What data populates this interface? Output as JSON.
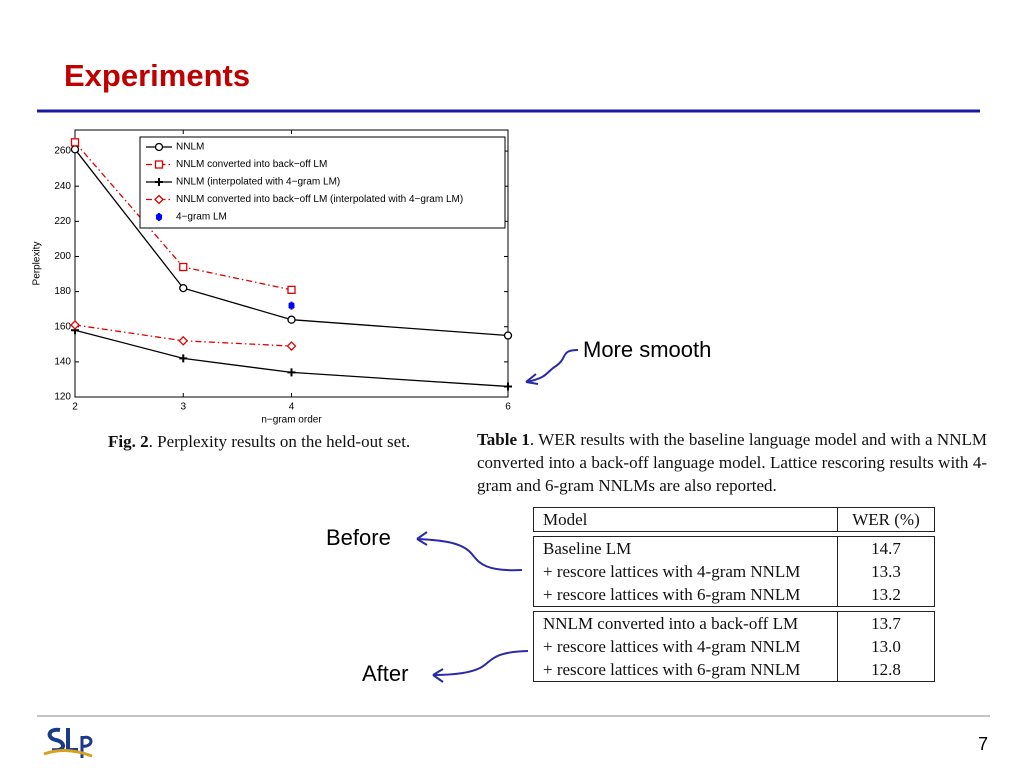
{
  "title": "Experiments",
  "chart_data": {
    "type": "line",
    "xlabel": "n−gram order",
    "ylabel": "Perplexity",
    "x": [
      2,
      3,
      4,
      6
    ],
    "xlim": [
      2,
      6
    ],
    "xticks": [
      2,
      3,
      4,
      6
    ],
    "ylim": [
      120,
      272
    ],
    "yticks": [
      120,
      140,
      160,
      180,
      200,
      220,
      240,
      260
    ],
    "grid": false,
    "series": [
      {
        "name": "NNLM",
        "color": "#000000",
        "marker": "circle",
        "dash": "solid",
        "values": [
          261,
          182,
          164,
          155
        ]
      },
      {
        "name": "NNLM converted into back−off LM",
        "color": "#e00000",
        "marker": "square",
        "dash": "dashdot",
        "values": [
          265,
          194,
          181,
          null
        ]
      },
      {
        "name": "NNLM (interpolated with 4−gram LM)",
        "color": "#000000",
        "marker": "plus",
        "dash": "solid",
        "values": [
          158,
          142,
          134,
          126
        ]
      },
      {
        "name": "NNLM converted into back−off LM (interpolated with 4−gram LM)",
        "color": "#e00000",
        "marker": "diamond",
        "dash": "dashdot",
        "values": [
          161,
          152,
          149,
          null
        ]
      },
      {
        "name": "4−gram LM",
        "color": "#0000ff",
        "marker": "star",
        "dash": "none",
        "values": [
          null,
          null,
          172,
          null
        ]
      }
    ]
  },
  "figure_caption": {
    "label": "Fig. 2",
    "text": ". Perplexity results on the held-out set."
  },
  "table_caption": {
    "label": "Table 1",
    "text": ". WER results with the baseline language model and with a NNLM converted into a back-off language model. Lattice rescoring results with 4-gram and 6-gram NNLMs are also reported."
  },
  "table": {
    "header": [
      "Model",
      "WER (%)"
    ],
    "groups": [
      [
        [
          "Baseline LM",
          "14.7"
        ],
        [
          "+ rescore lattices with 4-gram NNLM",
          "13.3"
        ],
        [
          "+ rescore lattices with 6-gram NNLM",
          "13.2"
        ]
      ],
      [
        [
          "NNLM converted into a back-off LM",
          "13.7"
        ],
        [
          "+ rescore lattices with 4-gram NNLM",
          "13.0"
        ],
        [
          "+ rescore lattices with 6-gram NNLM",
          "12.8"
        ]
      ]
    ]
  },
  "annotations": [
    "More smooth",
    "Before",
    "After"
  ],
  "page_number": "7"
}
